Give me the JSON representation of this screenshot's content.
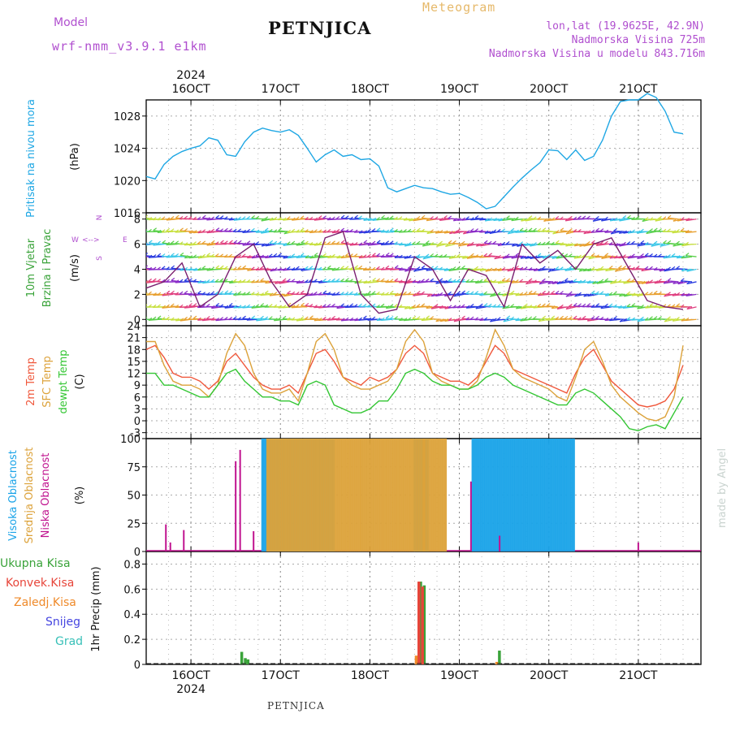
{
  "header": {
    "model_label": "Model",
    "model_name": "wrf-nmm_v3.9.1  e1km",
    "station_title": "PETNJICA",
    "product_title": "Meteogram",
    "lonlat": "lon,lat (19.9625E, 42.9N)",
    "elevation": "Nadmorska Visina 725m",
    "elevation_model": "Nadmorska Visina u modelu 843.716m",
    "footer_station": "PETNJICA",
    "watermark": "made by Angel"
  },
  "colors": {
    "pressure": "#1fa7e4",
    "temp2m": "#f0583c",
    "sfc": "#dca23a",
    "dew": "#33c633",
    "high": "#19a3e8",
    "mid": "#dca23a",
    "low": "#c0138f",
    "total": "#3aa33a",
    "conv": "#e7453a",
    "freez": "#ef8a2a",
    "snow": "#4545e0",
    "grad": "#38c0b8",
    "purple": "#b04fcf"
  },
  "time_axis": {
    "top_year": "2024",
    "bottom_year": "2024",
    "day_labels": [
      "16OCT",
      "17OCT",
      "18OCT",
      "19OCT",
      "20OCT",
      "21OCT"
    ]
  },
  "chart_data": [
    {
      "type": "line",
      "panel": "pressure",
      "ylabel_side": "Pritisak na nivou mora",
      "unit": "(hPa)",
      "ylim": [
        1016,
        1030
      ],
      "yticks": [
        1016,
        1020,
        1024,
        1028
      ],
      "xlim_days": [
        15.5,
        21.7
      ],
      "grid": true,
      "series": [
        {
          "color": "pressure",
          "x": [
            15.5,
            15.6,
            15.7,
            15.8,
            15.9,
            16.0,
            16.1,
            16.2,
            16.3,
            16.4,
            16.5,
            16.6,
            16.7,
            16.8,
            16.9,
            17.0,
            17.1,
            17.2,
            17.3,
            17.4,
            17.5,
            17.6,
            17.7,
            17.8,
            17.9,
            18.0,
            18.1,
            18.2,
            18.3,
            18.4,
            18.5,
            18.6,
            18.7,
            18.8,
            18.9,
            19.0,
            19.1,
            19.2,
            19.3,
            19.4,
            19.5,
            19.6,
            19.7,
            19.8,
            19.9,
            20.0,
            20.1,
            20.2,
            20.3,
            20.4,
            20.5,
            20.6,
            20.7,
            20.8,
            20.9,
            21.0,
            21.1,
            21.2,
            21.3,
            21.4,
            21.5
          ],
          "y": [
            1020.5,
            1020.2,
            1022.0,
            1023.0,
            1023.6,
            1024.0,
            1024.3,
            1025.3,
            1025.0,
            1023.2,
            1023.0,
            1024.8,
            1026.0,
            1026.5,
            1026.2,
            1026.0,
            1026.3,
            1025.6,
            1024.0,
            1022.3,
            1023.2,
            1023.8,
            1023.0,
            1023.2,
            1022.6,
            1022.7,
            1021.8,
            1019.1,
            1018.6,
            1019.0,
            1019.4,
            1019.1,
            1019.0,
            1018.6,
            1018.3,
            1018.4,
            1017.9,
            1017.3,
            1016.5,
            1016.8,
            1018.0,
            1019.2,
            1020.3,
            1021.3,
            1022.2,
            1023.8,
            1023.7,
            1022.6,
            1023.8,
            1022.5,
            1023.0,
            1025.0,
            1028.0,
            1029.8,
            1030.0,
            1030.0,
            1030.8,
            1030.3,
            1028.6,
            1026.0,
            1025.8
          ]
        }
      ]
    },
    {
      "type": "scatter",
      "panel": "wind",
      "ylabel_side": [
        "10m Vjetar",
        "Brzina i Pravac"
      ],
      "unit": "(m/s)",
      "compass": [
        "W",
        "<",
        "-",
        ">",
        "E",
        "N",
        "|",
        "S"
      ],
      "ylim": [
        -0.5,
        8.5
      ],
      "yticks": [
        0,
        2,
        4,
        6,
        8
      ],
      "xlim_days": [
        15.5,
        21.7
      ],
      "grid": true,
      "series": [
        {
          "name": "speed",
          "color": "#7a1f6f",
          "x": [
            15.5,
            15.7,
            15.9,
            16.1,
            16.3,
            16.5,
            16.7,
            16.9,
            17.1,
            17.3,
            17.5,
            17.7,
            17.9,
            18.1,
            18.3,
            18.5,
            18.7,
            18.9,
            19.1,
            19.3,
            19.5,
            19.7,
            19.9,
            20.1,
            20.3,
            20.5,
            20.7,
            20.9,
            21.1,
            21.3,
            21.5
          ],
          "y": [
            2.5,
            3.0,
            4.5,
            1.0,
            2.0,
            5.0,
            6.0,
            3.0,
            1.0,
            2.0,
            6.5,
            7.0,
            2.0,
            0.5,
            0.8,
            5.0,
            4.0,
            1.5,
            4.0,
            3.5,
            1.0,
            6.0,
            4.5,
            5.5,
            4.0,
            6.0,
            6.5,
            4.0,
            1.5,
            1.0,
            0.8
          ]
        }
      ],
      "arrow_rows": [
        0,
        1,
        2,
        3,
        4,
        5,
        6,
        7,
        8
      ],
      "arrow_colors": [
        "#3cc8e8",
        "#5ad04a",
        "#c8e040",
        "#e8a030",
        "#e04080",
        "#8a2cc8",
        "#2a3ce0"
      ]
    },
    {
      "type": "line",
      "panel": "temperature",
      "ylabel_side": [
        "2m Temp",
        "SFC Temp",
        "dewpt Temp"
      ],
      "unit": "(C)",
      "ylim": [
        -4.5,
        24
      ],
      "yticks": [
        -3,
        0,
        3,
        6,
        9,
        12,
        15,
        18,
        21,
        24
      ],
      "xlim_days": [
        15.5,
        21.7
      ],
      "grid": true,
      "series": [
        {
          "name": "2m Temp",
          "color": "temp2m",
          "x": [
            15.5,
            15.6,
            15.7,
            15.8,
            15.9,
            16.0,
            16.1,
            16.2,
            16.3,
            16.4,
            16.5,
            16.6,
            16.7,
            16.8,
            16.9,
            17.0,
            17.1,
            17.2,
            17.3,
            17.4,
            17.5,
            17.6,
            17.7,
            17.8,
            17.9,
            18.0,
            18.1,
            18.2,
            18.3,
            18.4,
            18.5,
            18.6,
            18.7,
            18.8,
            18.9,
            19.0,
            19.1,
            19.2,
            19.3,
            19.4,
            19.5,
            19.6,
            19.7,
            19.8,
            19.9,
            20.0,
            20.1,
            20.2,
            20.3,
            20.4,
            20.5,
            20.6,
            20.7,
            20.8,
            20.9,
            21.0,
            21.1,
            21.2,
            21.3,
            21.4,
            21.5
          ],
          "y": [
            18,
            19,
            16,
            12,
            11,
            11,
            10,
            8,
            10,
            15,
            17,
            14,
            11,
            9,
            8,
            8,
            9,
            7,
            12,
            17,
            18,
            15,
            11,
            10,
            9,
            11,
            10,
            11,
            13,
            17,
            19,
            17,
            12,
            11,
            10,
            10,
            9,
            11,
            15,
            19,
            17,
            13,
            12,
            11,
            10,
            9,
            8,
            7,
            12,
            16,
            18,
            14,
            10,
            8,
            6,
            4,
            3.5,
            4,
            5,
            8,
            14
          ]
        },
        {
          "name": "SFC Temp",
          "color": "sfc",
          "x": [
            15.5,
            15.6,
            15.7,
            15.8,
            15.9,
            16.0,
            16.1,
            16.2,
            16.3,
            16.4,
            16.5,
            16.6,
            16.7,
            16.8,
            16.9,
            17.0,
            17.1,
            17.2,
            17.3,
            17.4,
            17.5,
            17.6,
            17.7,
            17.8,
            17.9,
            18.0,
            18.1,
            18.2,
            18.3,
            18.4,
            18.5,
            18.6,
            18.7,
            18.8,
            18.9,
            19.0,
            19.1,
            19.2,
            19.3,
            19.4,
            19.5,
            19.6,
            19.7,
            19.8,
            19.9,
            20.0,
            20.1,
            20.2,
            20.3,
            20.4,
            20.5,
            20.6,
            20.7,
            20.8,
            20.9,
            21.0,
            21.1,
            21.2,
            21.3,
            21.4,
            21.5
          ],
          "y": [
            20,
            20,
            14,
            10,
            9,
            9,
            8,
            6,
            9,
            17,
            22,
            19,
            12,
            8,
            7,
            7,
            8,
            5,
            12,
            20,
            22,
            18,
            11,
            9,
            8,
            8,
            9,
            10,
            13,
            20,
            23,
            20,
            12,
            10,
            9,
            8,
            8,
            10,
            16,
            23,
            19,
            13,
            11,
            10,
            9,
            8,
            6,
            5,
            11,
            18,
            20,
            15,
            9,
            6,
            4,
            2,
            0.5,
            0,
            1,
            6,
            19
          ]
        },
        {
          "name": "dewpt Temp",
          "color": "dew",
          "x": [
            15.5,
            15.6,
            15.7,
            15.8,
            15.9,
            16.0,
            16.1,
            16.2,
            16.3,
            16.4,
            16.5,
            16.6,
            16.7,
            16.8,
            16.9,
            17.0,
            17.1,
            17.2,
            17.3,
            17.4,
            17.5,
            17.6,
            17.7,
            17.8,
            17.9,
            18.0,
            18.1,
            18.2,
            18.3,
            18.4,
            18.5,
            18.6,
            18.7,
            18.8,
            18.9,
            19.0,
            19.1,
            19.2,
            19.3,
            19.4,
            19.5,
            19.6,
            19.7,
            19.8,
            19.9,
            20.0,
            20.1,
            20.2,
            20.3,
            20.4,
            20.5,
            20.6,
            20.7,
            20.8,
            20.9,
            21.0,
            21.1,
            21.2,
            21.3,
            21.4,
            21.5
          ],
          "y": [
            12,
            12,
            9,
            9,
            8,
            7,
            6,
            6,
            9,
            12,
            13,
            10,
            8,
            6,
            6,
            5,
            5,
            4,
            9,
            10,
            9,
            4,
            3,
            2,
            2,
            3,
            5,
            5,
            8,
            12,
            13,
            12,
            10,
            9,
            9,
            8,
            8,
            9,
            11,
            12,
            11,
            9,
            8,
            7,
            6,
            5,
            4,
            4,
            7,
            8,
            7,
            5,
            3,
            1,
            -2,
            -2.5,
            -1.5,
            -1,
            -2,
            2,
            6
          ]
        }
      ]
    },
    {
      "type": "bar",
      "panel": "cloud",
      "ylabel_side": [
        "Visoka Oblacnost",
        "Srednja Oblacnost",
        "Niska Oblacnost"
      ],
      "unit": "(%)",
      "ylim": [
        0,
        100
      ],
      "yticks": [
        0,
        25,
        50,
        75,
        100
      ],
      "xlim_days": [
        15.5,
        21.7
      ],
      "grid": true,
      "series": [
        {
          "name": "Visoka Oblacnost",
          "color": "high",
          "blocks": [
            [
              16.8,
              17.6,
              100,
              0.024
            ],
            [
              18.5,
              18.65,
              100,
              0.024
            ],
            [
              19.15,
              20.3,
              100,
              0.024
            ]
          ]
        },
        {
          "name": "Srednja Oblacnost",
          "color": "mid",
          "blocks": [
            [
              16.85,
              17.9,
              100,
              0.024
            ],
            [
              17.9,
              18.6,
              100,
              0.024
            ],
            [
              18.6,
              18.85,
              100,
              0.024
            ]
          ]
        },
        {
          "name": "Niska Oblacnost",
          "color": "low",
          "x": [
            15.72,
            15.77,
            15.92,
            16.5,
            16.55,
            16.7,
            19.13,
            19.45,
            21.0
          ],
          "y": [
            24,
            8,
            19,
            80,
            90,
            18,
            62,
            14,
            8
          ]
        }
      ]
    },
    {
      "type": "bar",
      "panel": "precipitation",
      "ylabel_side": "1hr Precip (mm)",
      "legend": [
        "Ukupna Kisa",
        "Konvek.Kisa",
        "Zaledj.Kisa",
        "Snijeg",
        "Grad"
      ],
      "ylim": [
        0,
        0.9
      ],
      "yticks": [
        0,
        0.2,
        0.4,
        0.6,
        0.8
      ],
      "xlim_days": [
        15.5,
        21.7
      ],
      "grid": true,
      "series": [
        {
          "name": "Ukupna Kisa",
          "color": "total",
          "x": [
            16.57,
            16.61,
            16.64,
            18.57,
            18.61,
            19.45
          ],
          "y": [
            0.1,
            0.05,
            0.04,
            0.66,
            0.63,
            0.11
          ]
        },
        {
          "name": "Konvek.Kisa",
          "color": "conv",
          "x": [
            18.55,
            18.59
          ],
          "y": [
            0.66,
            0.62
          ]
        },
        {
          "name": "Zaledj.Kisa",
          "color": "freez",
          "x": [
            18.52,
            19.42
          ],
          "y": [
            0.07,
            0.02
          ]
        },
        {
          "name": "Snijeg",
          "color": "snow",
          "x": [],
          "y": []
        },
        {
          "name": "Grad",
          "color": "grad",
          "x": [],
          "y": []
        }
      ]
    }
  ]
}
